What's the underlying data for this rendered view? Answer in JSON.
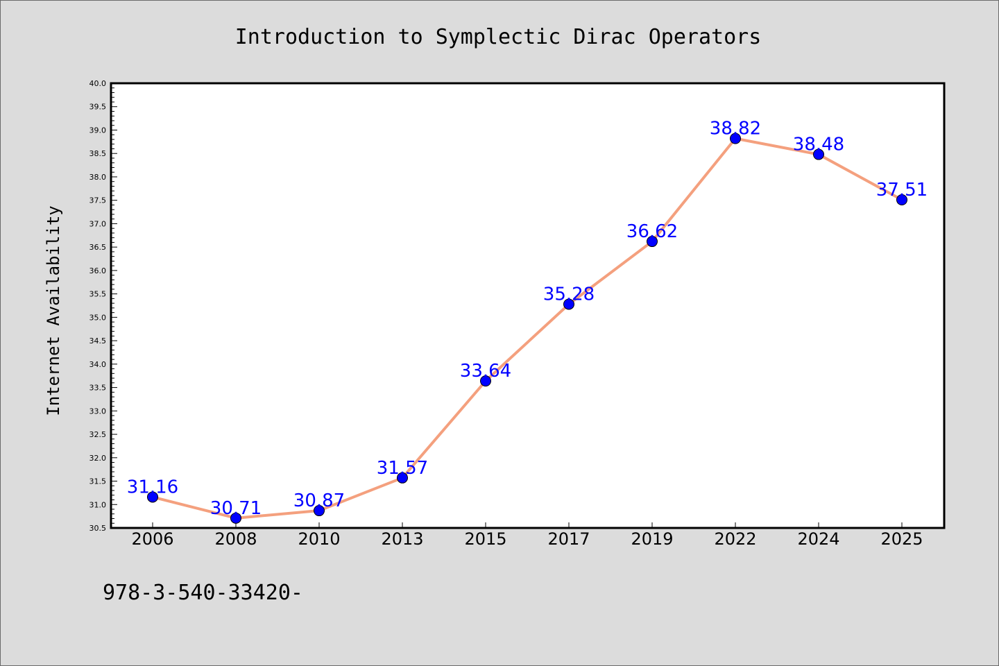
{
  "chart_data": {
    "type": "line",
    "title": "Introduction to Symplectic Dirac Operators",
    "xlabel": "",
    "ylabel": "Internet Availability",
    "categories": [
      "2006",
      "2008",
      "2010",
      "2013",
      "2015",
      "2017",
      "2019",
      "2022",
      "2024",
      "2025"
    ],
    "values": [
      31.16,
      30.71,
      30.87,
      31.57,
      33.64,
      35.28,
      36.62,
      38.82,
      38.48,
      37.51
    ],
    "data_labels": [
      "31.16",
      "30.71",
      "30.87",
      "31.57",
      "33.64",
      "35.28",
      "36.62",
      "38.82",
      "38.48",
      "37.51"
    ],
    "ylim": [
      30.5,
      40.0
    ],
    "yticks": [
      "30.5",
      "31.0",
      "31.5",
      "32.0",
      "32.5",
      "33.0",
      "33.5",
      "34.0",
      "34.5",
      "35.0",
      "35.5",
      "36.0",
      "36.5",
      "37.0",
      "37.5",
      "38.0",
      "38.5",
      "39.0",
      "39.5",
      "40.0"
    ],
    "grid": false,
    "line_color": "#f4a07e",
    "marker_color": "#0000ff",
    "label_color": "#0000ff"
  },
  "footer": {
    "text": "978-3-540-33420-"
  }
}
